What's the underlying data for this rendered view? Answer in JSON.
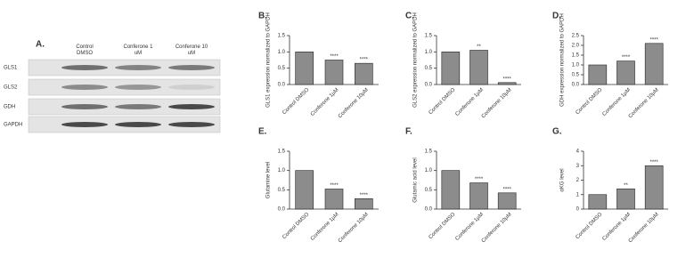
{
  "blot": {
    "panel_label": "A.",
    "columns": [
      "Control DMSO",
      "Conferone 1 uM",
      "Conferone 10 uM"
    ],
    "rows": [
      "GLS1",
      "GLS2",
      "GDH",
      "GAPDH"
    ]
  },
  "chart_data": [
    {
      "type": "bar",
      "panel_label": "B.",
      "ylabel": "GLS1 expression normalized to GAPDH",
      "categories": [
        "Control DMSO",
        "Conferone 1µM",
        "Conferone 10µM"
      ],
      "values": [
        1.0,
        0.75,
        0.65
      ],
      "annotations": [
        null,
        "****",
        "****"
      ],
      "color": "#8c8c8c",
      "ylim": [
        0,
        1.5
      ],
      "yticks": [
        {
          "value": 0,
          "label": "0.0"
        },
        {
          "value": 0.5,
          "label": "0.5"
        },
        {
          "value": 1,
          "label": "1.0"
        },
        {
          "value": 1.5,
          "label": "1.5"
        }
      ]
    },
    {
      "type": "bar",
      "panel_label": "C.",
      "ylabel": "GLS2 expression normalized to GAPDH",
      "categories": [
        "Control DMSO",
        "Conferone 1µM",
        "Conferone 10µM"
      ],
      "values": [
        1.0,
        1.05,
        0.06
      ],
      "annotations": [
        null,
        "**",
        "****"
      ],
      "color": "#8c8c8c",
      "ylim": [
        0,
        1.5
      ],
      "yticks": [
        {
          "value": 0,
          "label": "0.0"
        },
        {
          "value": 0.5,
          "label": "0.5"
        },
        {
          "value": 1,
          "label": "1.0"
        },
        {
          "value": 1.5,
          "label": "1.5"
        }
      ]
    },
    {
      "type": "bar",
      "panel_label": "D.",
      "ylabel": "GDH expression normalized to GAPDH",
      "categories": [
        "Control DMSO",
        "Conferone 1µM",
        "Conferone 10µM"
      ],
      "values": [
        1.0,
        1.2,
        2.1
      ],
      "annotations": [
        null,
        "****",
        "****"
      ],
      "color": "#8c8c8c",
      "ylim": [
        0,
        2.5
      ],
      "yticks": [
        {
          "value": 0,
          "label": "0.0"
        },
        {
          "value": 0.5,
          "label": "0.5"
        },
        {
          "value": 1,
          "label": "1.0"
        },
        {
          "value": 1.5,
          "label": "1.5"
        },
        {
          "value": 2,
          "label": "2.0"
        },
        {
          "value": 2.5,
          "label": "2.5"
        }
      ]
    },
    {
      "type": "bar",
      "panel_label": "E.",
      "ylabel": "Glutamine level",
      "categories": [
        "Control DMSO",
        "Conferone 1µM",
        "Conferone 10µM"
      ],
      "values": [
        1.0,
        0.52,
        0.27
      ],
      "annotations": [
        null,
        "****",
        "****"
      ],
      "color": "#8c8c8c",
      "ylim": [
        0,
        1.5
      ],
      "yticks": [
        {
          "value": 0,
          "label": "0.0"
        },
        {
          "value": 0.5,
          "label": "0.5"
        },
        {
          "value": 1,
          "label": "1.0"
        },
        {
          "value": 1.5,
          "label": "1.5"
        }
      ]
    },
    {
      "type": "bar",
      "panel_label": "F.",
      "ylabel": "Glutamic acid level",
      "categories": [
        "Control DMSO",
        "Conferone 1µM",
        "Conferone 10µM"
      ],
      "values": [
        1.0,
        0.68,
        0.42
      ],
      "annotations": [
        null,
        "****",
        "****"
      ],
      "color": "#8c8c8c",
      "ylim": [
        0,
        1.5
      ],
      "yticks": [
        {
          "value": 0,
          "label": "0.0"
        },
        {
          "value": 0.5,
          "label": "0.5"
        },
        {
          "value": 1,
          "label": "1.0"
        },
        {
          "value": 1.5,
          "label": "1.5"
        }
      ]
    },
    {
      "type": "bar",
      "panel_label": "G.",
      "ylabel": "αKG level",
      "categories": [
        "Control DMSO",
        "Conferone 1µM",
        "Conferone 10µM"
      ],
      "values": [
        1.0,
        1.4,
        3.0
      ],
      "annotations": [
        null,
        "**",
        "****"
      ],
      "color": "#8c8c8c",
      "ylim": [
        0,
        4
      ],
      "yticks": [
        0,
        1,
        2,
        3,
        4
      ]
    }
  ]
}
